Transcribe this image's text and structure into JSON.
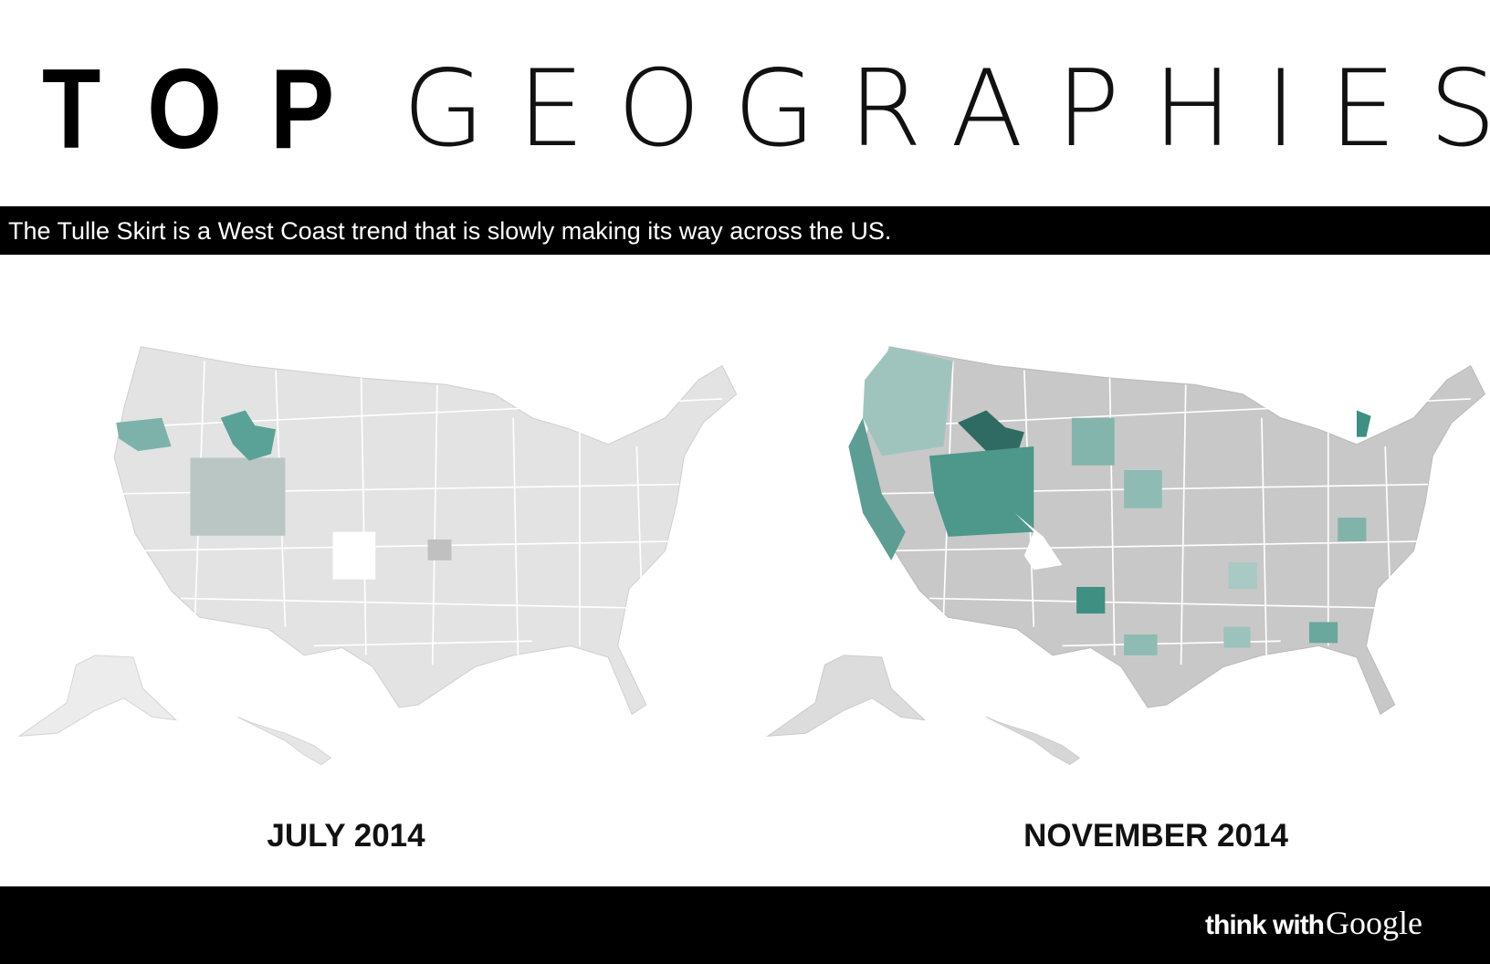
{
  "header": {
    "title_bold": "TOP",
    "title_light": "GEOGRAPHIES",
    "subtitle": "The Tulle Skirt is a West Coast trend that is slowly making its way across the US."
  },
  "maps": [
    {
      "label": "JULY 2014"
    },
    {
      "label": "NOVEMBER 2014"
    }
  ],
  "footer": {
    "logo_think": "think with",
    "logo_brand": "Google"
  }
}
